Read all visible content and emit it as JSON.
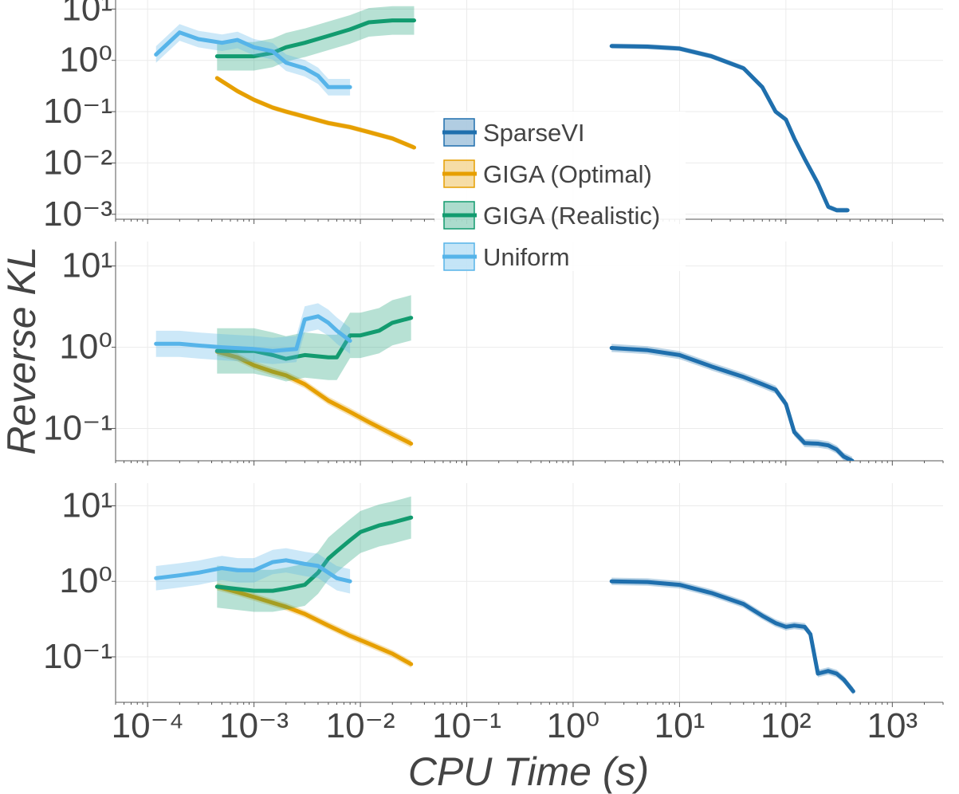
{
  "chart_data": [
    {
      "type": "line",
      "panel": "top",
      "xscale": "log",
      "yscale": "log",
      "xlim": [
        5e-05,
        3000
      ],
      "ylim": [
        0.0008,
        15
      ],
      "yticks": [
        0.001,
        0.01,
        0.1,
        1,
        10
      ],
      "series": [
        {
          "name": "SparseVI",
          "color": "#1f6fad",
          "x": [
            2.3,
            5,
            10,
            20,
            40,
            60,
            80,
            100,
            120,
            150,
            200,
            250,
            300,
            380
          ],
          "y": [
            1.9,
            1.85,
            1.7,
            1.2,
            0.7,
            0.3,
            0.1,
            0.07,
            0.03,
            0.012,
            0.004,
            0.0014,
            0.0012,
            0.0012
          ]
        },
        {
          "name": "GIGA (Optimal)",
          "color": "#e69f00",
          "x": [
            0.00045,
            0.0007,
            0.001,
            0.0015,
            0.002,
            0.003,
            0.005,
            0.008,
            0.012,
            0.02,
            0.032
          ],
          "y": [
            0.45,
            0.25,
            0.17,
            0.12,
            0.1,
            0.08,
            0.06,
            0.05,
            0.04,
            0.03,
            0.02
          ]
        },
        {
          "name": "GIGA (Realistic)",
          "color": "#129b6f",
          "x": [
            0.00045,
            0.001,
            0.0015,
            0.002,
            0.003,
            0.005,
            0.008,
            0.012,
            0.02,
            0.032
          ],
          "y": [
            1.2,
            1.2,
            1.4,
            1.8,
            2.2,
            3.0,
            4.0,
            5.5,
            6.0,
            6.0
          ]
        },
        {
          "name": "Uniform",
          "color": "#56b4e9",
          "x": [
            0.00012,
            0.0002,
            0.0003,
            0.0005,
            0.0007,
            0.001,
            0.0015,
            0.002,
            0.003,
            0.004,
            0.005,
            0.006,
            0.008
          ],
          "y": [
            1.3,
            3.5,
            2.6,
            2.2,
            2.5,
            1.8,
            1.5,
            0.9,
            0.7,
            0.5,
            0.3,
            0.3,
            0.3
          ]
        }
      ]
    },
    {
      "type": "line",
      "panel": "middle",
      "xscale": "log",
      "yscale": "log",
      "xlim": [
        5e-05,
        3000
      ],
      "ylim": [
        0.04,
        20
      ],
      "yticks": [
        0.1,
        1,
        10
      ],
      "series": [
        {
          "name": "SparseVI",
          "color": "#1f6fad",
          "x": [
            2.3,
            5,
            10,
            20,
            40,
            60,
            80,
            100,
            120,
            150,
            200,
            250,
            300,
            350,
            420
          ],
          "y": [
            0.98,
            0.92,
            0.8,
            0.58,
            0.43,
            0.35,
            0.3,
            0.2,
            0.09,
            0.066,
            0.065,
            0.062,
            0.055,
            0.045,
            0.04
          ]
        },
        {
          "name": "GIGA (Optimal)",
          "color": "#e69f00",
          "x": [
            0.00045,
            0.0007,
            0.001,
            0.0015,
            0.002,
            0.003,
            0.005,
            0.008,
            0.012,
            0.02,
            0.03
          ],
          "y": [
            0.88,
            0.75,
            0.6,
            0.5,
            0.45,
            0.35,
            0.22,
            0.16,
            0.12,
            0.085,
            0.065
          ]
        },
        {
          "name": "GIGA (Realistic)",
          "color": "#129b6f",
          "x": [
            0.00045,
            0.001,
            0.0015,
            0.002,
            0.003,
            0.005,
            0.006,
            0.008,
            0.01,
            0.015,
            0.02,
            0.03
          ],
          "y": [
            0.9,
            0.9,
            0.8,
            0.72,
            0.8,
            0.75,
            0.75,
            1.4,
            1.4,
            1.6,
            2.0,
            2.3
          ]
        },
        {
          "name": "Uniform",
          "color": "#56b4e9",
          "x": [
            0.00012,
            0.0002,
            0.0003,
            0.0005,
            0.001,
            0.0015,
            0.0025,
            0.003,
            0.004,
            0.005,
            0.006,
            0.008
          ],
          "y": [
            1.1,
            1.1,
            1.05,
            1.0,
            0.95,
            0.9,
            0.95,
            2.2,
            2.4,
            2.0,
            1.6,
            1.2
          ]
        }
      ]
    },
    {
      "type": "line",
      "panel": "bottom",
      "xscale": "log",
      "yscale": "log",
      "xlim": [
        5e-05,
        3000
      ],
      "ylim": [
        0.025,
        20
      ],
      "yticks": [
        0.1,
        1,
        10
      ],
      "series": [
        {
          "name": "SparseVI",
          "color": "#1f6fad",
          "x": [
            2.3,
            5,
            10,
            20,
            40,
            60,
            80,
            100,
            120,
            150,
            170,
            200,
            250,
            300,
            350,
            430
          ],
          "y": [
            1.0,
            0.98,
            0.9,
            0.7,
            0.5,
            0.35,
            0.28,
            0.25,
            0.26,
            0.25,
            0.2,
            0.06,
            0.065,
            0.06,
            0.05,
            0.035
          ]
        },
        {
          "name": "GIGA (Optimal)",
          "color": "#e69f00",
          "x": [
            0.00045,
            0.0007,
            0.001,
            0.0015,
            0.002,
            0.003,
            0.005,
            0.008,
            0.012,
            0.02,
            0.03
          ],
          "y": [
            0.85,
            0.72,
            0.62,
            0.52,
            0.46,
            0.37,
            0.26,
            0.19,
            0.15,
            0.11,
            0.08
          ]
        },
        {
          "name": "GIGA (Realistic)",
          "color": "#129b6f",
          "x": [
            0.00045,
            0.001,
            0.0015,
            0.002,
            0.003,
            0.004,
            0.005,
            0.006,
            0.008,
            0.01,
            0.015,
            0.02,
            0.03
          ],
          "y": [
            0.85,
            0.75,
            0.75,
            0.8,
            0.9,
            1.3,
            2.0,
            2.5,
            3.5,
            4.5,
            5.5,
            6.0,
            7.0
          ]
        },
        {
          "name": "Uniform",
          "color": "#56b4e9",
          "x": [
            0.00012,
            0.0002,
            0.0003,
            0.0005,
            0.0007,
            0.001,
            0.0015,
            0.002,
            0.003,
            0.004,
            0.005,
            0.006,
            0.008
          ],
          "y": [
            1.1,
            1.2,
            1.3,
            1.5,
            1.4,
            1.4,
            1.8,
            1.9,
            1.7,
            1.6,
            1.3,
            1.1,
            1.0
          ]
        }
      ]
    }
  ],
  "ylabel": "Reverse KL",
  "xlabel": "CPU Time (s)",
  "legend": {
    "location": "center",
    "entries": [
      "SparseVI",
      "GIGA (Optimal)",
      "GIGA (Realistic)",
      "Uniform"
    ]
  },
  "xticks": [
    {
      "value": 0.0001,
      "label": "10−4"
    },
    {
      "value": 0.001,
      "label": "10−3"
    },
    {
      "value": 0.01,
      "label": "10−2"
    },
    {
      "value": 0.1,
      "label": "10−1"
    },
    {
      "value": 1,
      "label": "100"
    },
    {
      "value": 10,
      "label": "101"
    },
    {
      "value": 100,
      "label": "102"
    },
    {
      "value": 1000,
      "label": "103"
    }
  ]
}
